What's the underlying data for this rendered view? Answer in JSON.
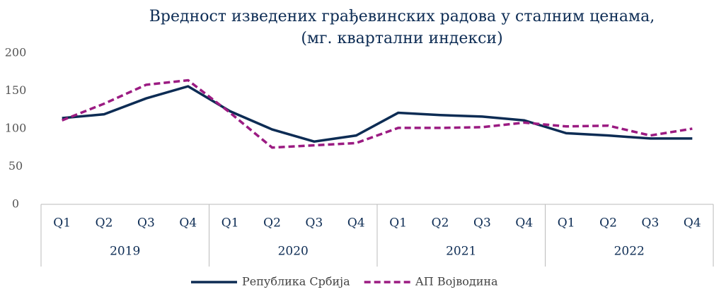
{
  "chart_data": {
    "type": "line",
    "title": [
      "Вредност изведених грађевинских радова у сталним ценама,",
      "(мг. квартални индекси)"
    ],
    "categories": [
      "Q1",
      "Q2",
      "Q3",
      "Q4",
      "Q1",
      "Q2",
      "Q3",
      "Q4",
      "Q1",
      "Q2",
      "Q3",
      "Q4",
      "Q1",
      "Q2",
      "Q3",
      "Q4"
    ],
    "category_groups": [
      "2019",
      "2020",
      "2021",
      "2022"
    ],
    "series": [
      {
        "name": "Република Србија",
        "color": "#0d2c54",
        "dashed": false,
        "values": [
          114,
          119,
          140,
          156,
          123,
          99,
          83,
          91,
          121,
          118,
          116,
          111,
          94,
          91,
          87,
          87
        ]
      },
      {
        "name": "АП Војводина",
        "color": "#9b1b82",
        "dashed": true,
        "values": [
          111,
          133,
          158,
          164,
          121,
          75,
          78,
          81,
          101,
          101,
          102,
          108,
          103,
          104,
          91,
          100
        ]
      }
    ],
    "ylim": [
      0,
      200
    ],
    "yticks": [
      0,
      50,
      100,
      150,
      200
    ],
    "grid": false,
    "legend": "bottom"
  }
}
